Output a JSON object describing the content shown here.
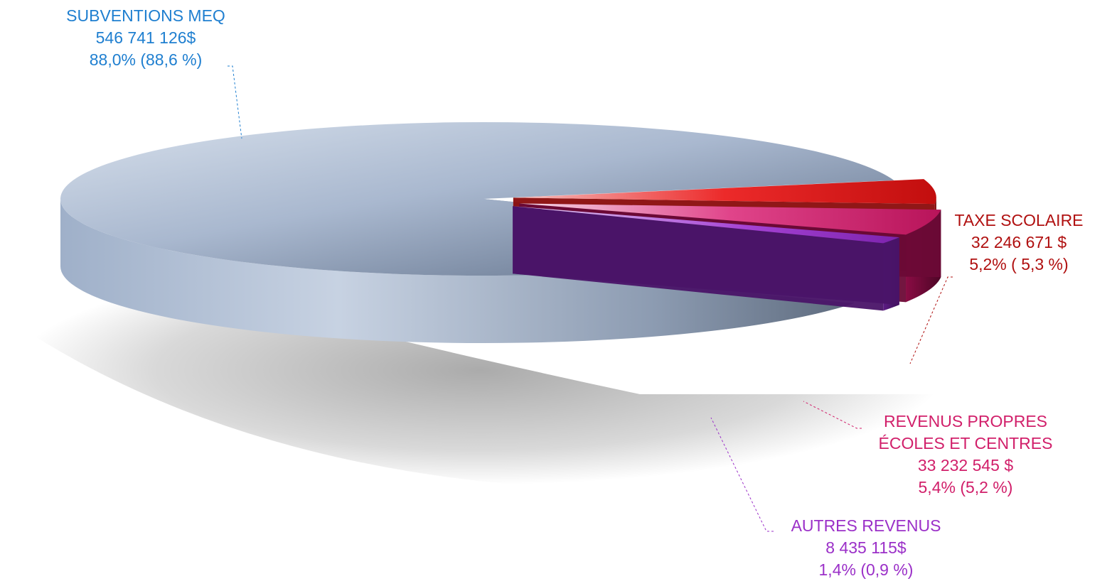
{
  "chart_data": {
    "type": "pie",
    "style": "3d-exploded",
    "legend": "none",
    "slices": [
      {
        "name": "SUBVENTIONS MEQ",
        "value": 546741126,
        "amount_text": "546 741 126$",
        "percent_text": "88,0%  (88,6 %)",
        "color": "#aebbd2"
      },
      {
        "name": "TAXE SCOLAIRE",
        "value": 32246671,
        "amount_text": "32 246 671 $",
        "percent_text": "5,2%  ( 5,3 %)",
        "color": "#e02424"
      },
      {
        "name": "REVENUS PROPRES",
        "name_line2": "ÉCOLES ET CENTRES",
        "value": 33232545,
        "amount_text": "33 232 545 $",
        "percent_text": "5,4% (5,2 %)",
        "color": "#cc1f66"
      },
      {
        "name": "AUTRES REVENUS",
        "value": 8435115,
        "amount_text": "8 435 115$",
        "percent_text": "1,4% (0,9 %)",
        "color": "#9b32c4"
      }
    ],
    "label_colors": [
      "#1f7fd0",
      "#b01010",
      "#d11f6a",
      "#9b30c8"
    ]
  }
}
